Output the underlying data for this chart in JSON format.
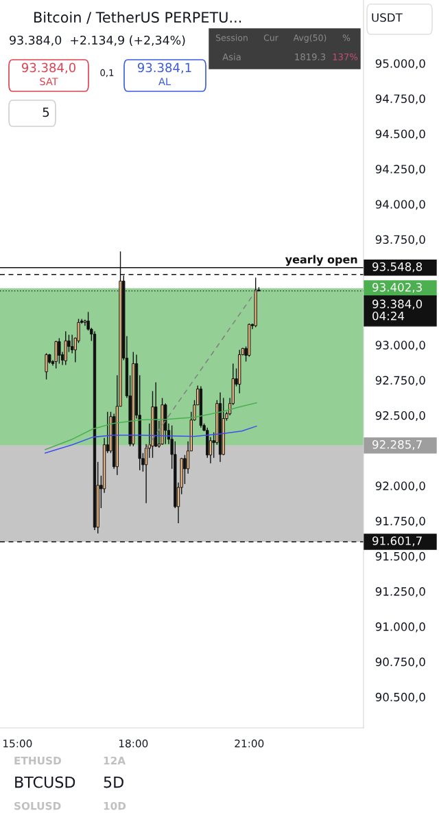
{
  "chart_data": {
    "type": "candlestick",
    "title": "Bitcoin / TetherUS PERPETU...",
    "subtitle": "93.384,0  +2.134,9 (+2,34%)",
    "x": [
      15.75,
      15.8333,
      15.9167,
      16.0,
      16.0833,
      16.1667,
      16.25,
      16.3333,
      16.4167,
      16.5,
      16.5833,
      16.6667,
      16.75,
      16.8333,
      16.9167,
      17.0,
      17.0833,
      17.1667,
      17.25,
      17.3333,
      17.4167,
      17.5,
      17.5833,
      17.6667,
      17.75,
      17.8333,
      17.9167,
      18.0,
      18.0833,
      18.1667,
      18.25,
      18.3333,
      18.4167,
      18.5,
      18.5833,
      18.6667,
      18.75,
      18.8333,
      18.9167,
      19.0,
      19.0833,
      19.1667,
      19.25,
      19.3333,
      19.4167,
      19.5,
      19.5833,
      19.6667,
      19.75,
      19.8333,
      19.9167,
      20.0,
      20.0833,
      20.1667,
      20.25,
      20.3333,
      20.4167,
      20.5,
      20.5833,
      20.6667,
      20.75,
      20.8333,
      20.9167,
      21.0,
      21.0833,
      21.1667,
      21.25
    ],
    "ohlc": [
      [
        92809,
        92941,
        92755,
        92931
      ],
      [
        92931,
        92936,
        92867,
        92877
      ],
      [
        92882,
        92892,
        92853,
        92867
      ],
      [
        92882,
        93029,
        92833,
        93024
      ],
      [
        93024,
        93048,
        92867,
        92926
      ],
      [
        92931,
        92950,
        92858,
        92892
      ],
      [
        92887,
        93097,
        92858,
        93029
      ],
      [
        93029,
        93072,
        92950,
        92989
      ],
      [
        92989,
        93072,
        92941,
        92965
      ],
      [
        92965,
        93053,
        92877,
        93048
      ],
      [
        93029,
        93185,
        93014,
        93160
      ],
      [
        93170,
        93185,
        93151,
        93160
      ],
      [
        93160,
        93180,
        93136,
        93170
      ],
      [
        93170,
        93234,
        93102,
        93112
      ],
      [
        93112,
        93121,
        93029,
        93077
      ],
      [
        93077,
        93097,
        91685,
        91705
      ],
      [
        91705,
        92169,
        91661,
        92003
      ],
      [
        92003,
        92071,
        91841,
        91978
      ],
      [
        91978,
        92340,
        91949,
        92291
      ],
      [
        92291,
        92525,
        92232,
        92247
      ],
      [
        92247,
        92525,
        92232,
        92491
      ],
      [
        92491,
        92511,
        92120,
        92135
      ],
      [
        92135,
        92784,
        92076,
        92564
      ],
      [
        92564,
        93664,
        92564,
        93454
      ],
      [
        93454,
        93493,
        92892,
        92906
      ],
      [
        92906,
        93063,
        92623,
        92638
      ],
      [
        92638,
        92784,
        92281,
        92296
      ],
      [
        92296,
        92950,
        92281,
        92867
      ],
      [
        92867,
        92931,
        92477,
        92501
      ],
      [
        92501,
        92784,
        92110,
        92193
      ],
      [
        92193,
        92232,
        92100,
        92149
      ],
      [
        92149,
        92296,
        91876,
        92266
      ],
      [
        92266,
        92442,
        92198,
        92291
      ],
      [
        92281,
        92672,
        92198,
        92560
      ],
      [
        92560,
        92735,
        92275,
        92281
      ],
      [
        92281,
        92462,
        92270,
        92296
      ],
      [
        92296,
        92623,
        92291,
        92574
      ],
      [
        92574,
        92584,
        92296,
        92393
      ],
      [
        92393,
        92442,
        92296,
        92330
      ],
      [
        92330,
        92428,
        92120,
        92222
      ],
      [
        92222,
        92315,
        91841,
        91851
      ],
      [
        91851,
        92022,
        91734,
        91988
      ],
      [
        91988,
        92198,
        91939,
        92193
      ],
      [
        92193,
        92218,
        92012,
        92120
      ],
      [
        92120,
        92315,
        92086,
        92247
      ],
      [
        92247,
        92525,
        92247,
        92467
      ],
      [
        92467,
        92608,
        92462,
        92574
      ],
      [
        92574,
        92711,
        92574,
        92687
      ],
      [
        92687,
        92706,
        92413,
        92428
      ],
      [
        92428,
        92442,
        92388,
        92393
      ],
      [
        92393,
        92413,
        92198,
        92218
      ],
      [
        92218,
        92345,
        92159,
        92320
      ],
      [
        92320,
        92379,
        92198,
        92306
      ],
      [
        92306,
        92608,
        92291,
        92584
      ],
      [
        92584,
        92662,
        92169,
        92222
      ],
      [
        92222,
        92623,
        92218,
        92477
      ],
      [
        92477,
        92525,
        92462,
        92511
      ],
      [
        92511,
        92623,
        92501,
        92584
      ],
      [
        92584,
        92867,
        92574,
        92760
      ],
      [
        92760,
        92833,
        92706,
        92721
      ],
      [
        92721,
        92965,
        92657,
        92931
      ],
      [
        92931,
        92980,
        92926,
        92975
      ],
      [
        92975,
        92989,
        92882,
        92926
      ],
      [
        92926,
        93151,
        92916,
        93146
      ],
      [
        93146,
        93151,
        93112,
        93136
      ],
      [
        93136,
        93478,
        93126,
        93390
      ],
      [
        93390,
        93410,
        93380,
        93384
      ]
    ],
    "colors": [
      "#e9b57f",
      "#111111",
      "#111111",
      "#e9b57f",
      "#111111",
      "#111111",
      "#e9b57f",
      "#111111",
      "#111111",
      "#e9b57f",
      "#e9b57f",
      "#111111",
      "#e9b57f",
      "#111111",
      "#111111",
      "#111111",
      "#e9b57f",
      "#111111",
      "#e9b57f",
      "#111111",
      "#e9b57f",
      "#111111",
      "#e9b57f",
      "#e9b57f",
      "#111111",
      "#111111",
      "#111111",
      "#e9b57f",
      "#111111",
      "#111111",
      "#111111",
      "#e9b57f",
      "#e9b57f",
      "#e9b57f",
      "#111111",
      "#e9b57f",
      "#e9b57f",
      "#111111",
      "#111111",
      "#111111",
      "#111111",
      "#e9b57f",
      "#e9b57f",
      "#111111",
      "#e9b57f",
      "#e9b57f",
      "#e9b57f",
      "#e9b57f",
      "#111111",
      "#111111",
      "#111111",
      "#e9b57f",
      "#111111",
      "#e9b57f",
      "#111111",
      "#e9b57f",
      "#e9b57f",
      "#e9b57f",
      "#e9b57f",
      "#111111",
      "#e9b57f",
      "#e9b57f",
      "#111111",
      "#e9b57f",
      "#111111",
      "#e9b57f",
      "#111111"
    ],
    "series": [
      {
        "type": "line",
        "color": "#4caf50",
        "x": [
          15.72,
          16.42,
          16.95,
          17.47,
          18.18,
          18.88,
          19.58,
          20.28,
          20.81,
          21.19
        ],
        "values": [
          92257,
          92330,
          92403,
          92442,
          92467,
          92472,
          92486,
          92525,
          92564,
          92589
        ]
      },
      {
        "type": "line",
        "color": "#3f4ff0",
        "x": [
          15.72,
          16.42,
          16.95,
          17.47,
          18.18,
          18.88,
          19.58,
          20.28,
          20.81,
          21.19
        ],
        "values": [
          92232,
          92291,
          92345,
          92359,
          92359,
          92354,
          92350,
          92369,
          92388,
          92423
        ]
      },
      {
        "type": "line",
        "color": "#808080",
        "line_style": "dashed",
        "x": [
          18.3333,
          21.25
        ],
        "values": [
          92266,
          93414
        ]
      }
    ],
    "xlim": [
      14.55,
      23.96
    ],
    "xticks": [
      {
        "value": 15,
        "label": "15:00"
      },
      {
        "value": 18,
        "label": "18:00"
      },
      {
        "value": 21,
        "label": "21:00"
      }
    ],
    "ylim": [
      90280,
      95450
    ],
    "yticks": [
      {
        "value": 95000,
        "label": "95.000,0"
      },
      {
        "value": 94750,
        "label": "94.750,0"
      },
      {
        "value": 94500,
        "label": "94.500,0"
      },
      {
        "value": 94250,
        "label": "94.250,0"
      },
      {
        "value": 94000,
        "label": "94.000,0"
      },
      {
        "value": 93750,
        "label": "93.750,0"
      },
      {
        "value": 93000,
        "label": "93.000,0"
      },
      {
        "value": 92750,
        "label": "92.750,0"
      },
      {
        "value": 92500,
        "label": "92.500,0"
      },
      {
        "value": 92000,
        "label": "92.000,0"
      },
      {
        "value": 91750,
        "label": "91.750,0"
      },
      {
        "value": 91500,
        "label": "91.500,0"
      },
      {
        "value": 91250,
        "label": "91.250,0"
      },
      {
        "value": 91000,
        "label": "91.000,0"
      },
      {
        "value": 90750,
        "label": "90.750,0"
      },
      {
        "value": 90500,
        "label": "90.500,0"
      }
    ],
    "ref_lines": [
      {
        "axis": "y",
        "value": 93548.8,
        "label": "93.548,8",
        "color": "#111111",
        "line_style": "solid"
      },
      {
        "axis": "y",
        "value": 93500,
        "color": "#111111",
        "line_style": "dashed"
      },
      {
        "axis": "y",
        "value": 93384.0,
        "label": "93.384,0\n04:24",
        "color": "#111111",
        "line_style": "dotted"
      },
      {
        "axis": "y",
        "value": 91601.7,
        "label": "91.601,7",
        "color": "#111111",
        "line_style": "dashed"
      }
    ],
    "bands": [
      {
        "axis": "y",
        "from": 92285.7,
        "to": 93402.3,
        "label": "93.402,3",
        "color": "#4caf50"
      },
      {
        "axis": "y",
        "from": 91601.7,
        "to": 92285.7,
        "label": "92.285,7",
        "color": "#9e9e9e"
      }
    ],
    "annotations": [
      {
        "text": "yearly open",
        "y": 93548.8
      },
      "93.384,0",
      "SAT",
      "0,1",
      "93.384,1",
      "AL",
      "5",
      "USDT",
      "Session",
      "Cur",
      "Avg(50)",
      "%",
      "Asia",
      "1819.3",
      "137%",
      "ETHUSD",
      "12A",
      "BTCUSD",
      "5D",
      "SOLUSD",
      "10D"
    ]
  }
}
